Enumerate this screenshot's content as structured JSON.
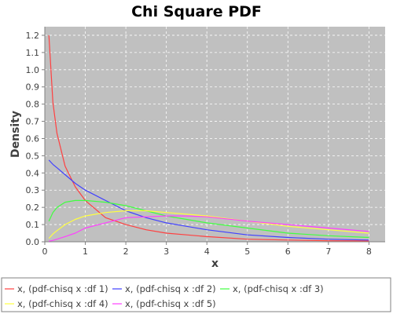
{
  "chart_data": {
    "type": "line",
    "title": "Chi Square PDF",
    "xlabel": "x",
    "ylabel": "Density",
    "xlim": [
      0,
      8.4
    ],
    "ylim": [
      0,
      1.25
    ],
    "grid": true,
    "legend_position": "bottom",
    "x_ticks": [
      "0",
      "1",
      "2",
      "3",
      "4",
      "5",
      "6",
      "7",
      "8"
    ],
    "y_ticks": [
      "0.0",
      "0.1",
      "0.2",
      "0.3",
      "0.4",
      "0.5",
      "0.6",
      "0.7",
      "0.8",
      "0.9",
      "1.0",
      "1.1",
      "1.2"
    ],
    "x": [
      0.1,
      0.2,
      0.3,
      0.5,
      0.75,
      1,
      1.5,
      2,
      2.5,
      3,
      3.5,
      4,
      5,
      6,
      7,
      8
    ],
    "series": [
      {
        "name": "x, (pdf-chisq x :df 1)",
        "color": "#ff4040",
        "values": [
          1.2,
          0.81,
          0.63,
          0.44,
          0.32,
          0.24,
          0.14,
          0.1,
          0.07,
          0.05,
          0.04,
          0.03,
          0.015,
          0.01,
          0.006,
          0.005
        ]
      },
      {
        "name": "x, (pdf-chisq x :df 2)",
        "color": "#4040ff",
        "values": [
          0.475,
          0.45,
          0.43,
          0.39,
          0.34,
          0.3,
          0.24,
          0.18,
          0.14,
          0.11,
          0.09,
          0.07,
          0.04,
          0.025,
          0.015,
          0.01
        ]
      },
      {
        "name": "x, (pdf-chisq x :df 3)",
        "color": "#40ff40",
        "values": [
          0.12,
          0.17,
          0.2,
          0.23,
          0.24,
          0.24,
          0.23,
          0.21,
          0.18,
          0.15,
          0.13,
          0.11,
          0.08,
          0.05,
          0.035,
          0.025
        ]
      },
      {
        "name": "x, (pdf-chisq x :df 4)",
        "color": "#ffff40",
        "values": [
          0.02,
          0.045,
          0.065,
          0.1,
          0.13,
          0.15,
          0.17,
          0.18,
          0.18,
          0.17,
          0.16,
          0.15,
          0.12,
          0.09,
          0.07,
          0.05
        ]
      },
      {
        "name": "x, (pdf-chisq x :df 5)",
        "color": "#ff40ff",
        "values": [
          0.003,
          0.008,
          0.015,
          0.03,
          0.05,
          0.08,
          0.11,
          0.14,
          0.145,
          0.15,
          0.15,
          0.145,
          0.12,
          0.1,
          0.08,
          0.06
        ]
      }
    ]
  }
}
